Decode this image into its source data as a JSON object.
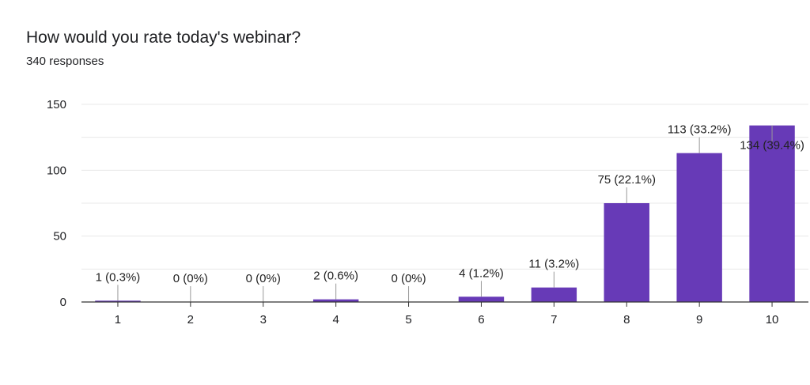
{
  "header": {
    "question": "How would you rate today's webinar?",
    "responses": "340 responses"
  },
  "colors": {
    "bar": "#673ab7",
    "grid": "#e8e8e8",
    "axis": "#333333",
    "text": "#202124",
    "leader": "#999999"
  },
  "chart_data": {
    "type": "bar",
    "title": "How would you rate today's webinar?",
    "subtitle": "340 responses",
    "categories": [
      "1",
      "2",
      "3",
      "4",
      "5",
      "6",
      "7",
      "8",
      "9",
      "10"
    ],
    "values": [
      1,
      0,
      0,
      2,
      0,
      4,
      11,
      75,
      113,
      134
    ],
    "data_labels": [
      "1 (0.3%)",
      "0 (0%)",
      "0 (0%)",
      "2 (0.6%)",
      "0 (0%)",
      "4 (1.2%)",
      "11 (3.2%)",
      "75 (22.1%)",
      "113 (33.2%)",
      "134 (39.4%)"
    ],
    "yticks": [
      0,
      50,
      100,
      150
    ],
    "ylim": [
      0,
      150
    ],
    "grid": true,
    "legend": "none",
    "xlabel": "",
    "ylabel": ""
  }
}
